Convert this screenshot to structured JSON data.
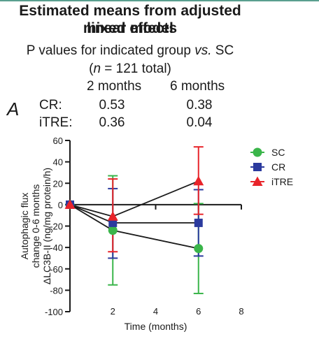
{
  "title_line1": "Estimated means from adjusted mixed effects",
  "title_line2": "linear model",
  "pvalue_table": {
    "heading": "P values for indicated group vs. SC",
    "heading_plain1": "P values for indicated group ",
    "heading_italic": "vs.",
    "heading_plain2": " SC",
    "n_open": "(",
    "n_italic": "n",
    "n_rest": " = 121 total)",
    "col_headers": [
      "2 months",
      "6 months"
    ],
    "rows": [
      {
        "label": "CR:",
        "values": [
          "0.53",
          "0.38"
        ]
      },
      {
        "label": "iTRE:",
        "values": [
          "0.36",
          "0.04"
        ]
      }
    ]
  },
  "panel_label": "A",
  "chart_data": {
    "type": "line",
    "ylabel_lines": [
      "Autophagic flux",
      "change 0-6 months",
      "ΔLC3B-II (ng/mg protein/h)"
    ],
    "xlabel": "Time (months)",
    "xlim": [
      0,
      8
    ],
    "ylim": [
      -100,
      60
    ],
    "xticks": [
      2,
      4,
      6,
      8
    ],
    "yticks": [
      60,
      40,
      20,
      0,
      -20,
      -40,
      -60,
      -80,
      -100
    ],
    "grid": false,
    "legend_position": "right",
    "series": [
      {
        "name": "SC",
        "color": "#3ab54a",
        "marker": "circle",
        "x": [
          0,
          2,
          6
        ],
        "y": [
          0,
          -24,
          -41
        ],
        "err_low": [
          0,
          -75,
          -83
        ],
        "err_high": [
          0,
          27,
          1
        ]
      },
      {
        "name": "CR",
        "color": "#2b3a9e",
        "marker": "square",
        "x": [
          0,
          2,
          6
        ],
        "y": [
          0,
          -17,
          -17
        ],
        "err_low": [
          0,
          -50,
          -48
        ],
        "err_high": [
          0,
          15,
          14
        ]
      },
      {
        "name": "iTRE",
        "color": "#e8242a",
        "marker": "triangle",
        "x": [
          0,
          2,
          6
        ],
        "y": [
          0,
          -11,
          22
        ],
        "err_low": [
          0,
          -44,
          -9
        ],
        "err_high": [
          0,
          24,
          54
        ]
      }
    ]
  }
}
